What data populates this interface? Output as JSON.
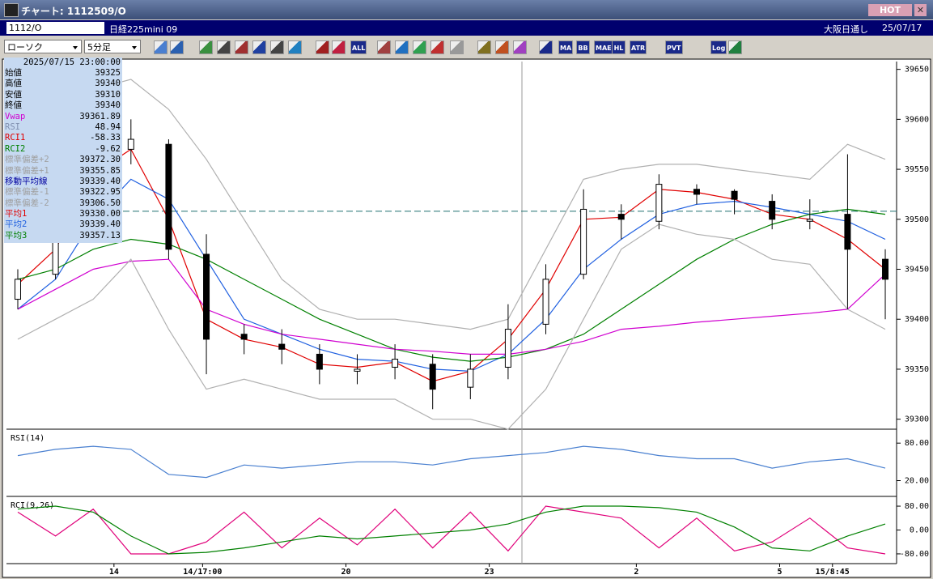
{
  "title_bar": {
    "title": "チャート: 1112509/O",
    "hot": "HOT"
  },
  "toolbar": {
    "symbol": "1112/O",
    "name": "日経225mini 09",
    "exchange": "大阪日通し",
    "date": "25/07/17",
    "chart_type": "ローソク",
    "timeframe": "5分足",
    "buttons": [
      "ALL",
      "MA",
      "BB",
      "MAE",
      "HL",
      "ATR",
      "PVT",
      "Log"
    ]
  },
  "info_panel": {
    "datetime": "2025/07/15 23:00:00",
    "rows": [
      [
        "始値",
        "39325"
      ],
      [
        "高値",
        "39340"
      ],
      [
        "安値",
        "39310"
      ],
      [
        "終値",
        "39340"
      ],
      [
        "Vwap",
        "39361.89"
      ],
      [
        "RSI",
        "48.94"
      ],
      [
        "RCI1",
        "-58.33"
      ],
      [
        "RCI2",
        "-9.62"
      ],
      [
        "標準偏差+2",
        "39372.30"
      ],
      [
        "標準偏差+1",
        "39355.85"
      ],
      [
        "移動平均線",
        "39339.40"
      ],
      [
        "標準偏差-1",
        "39322.95"
      ],
      [
        "標準偏差-2",
        "39306.50"
      ],
      [
        "平均1",
        "39330.00"
      ],
      [
        "平均2",
        "39339.40"
      ],
      [
        "平均3",
        "39357.13"
      ]
    ]
  },
  "chart_data": {
    "type": "candlestick",
    "x": [
      0,
      1,
      2,
      3,
      4,
      5,
      6,
      7,
      8,
      9,
      10,
      11,
      12,
      13,
      14,
      15,
      16,
      17,
      18,
      19,
      20,
      21,
      22,
      23
    ],
    "xlim": [
      -0.3,
      23.3
    ],
    "xticks": [
      {
        "value": 2.55,
        "label": "14"
      },
      {
        "value": 4.9,
        "label": "14/17:00"
      },
      {
        "value": 8.7,
        "label": "20"
      },
      {
        "value": 12.5,
        "label": "23"
      },
      {
        "value": 16.4,
        "label": "2"
      },
      {
        "value": 20.2,
        "label": "5"
      },
      {
        "value": 21.6,
        "label": "15/8:45"
      }
    ],
    "ohlc": {
      "open": [
        39420,
        39445,
        39495,
        39570,
        39575,
        39465,
        39385,
        39375,
        39365,
        39348,
        39352,
        39355,
        39332,
        39352,
        39395,
        39445,
        39505,
        39498,
        39530,
        39528,
        39518,
        39498,
        39505,
        39460
      ],
      "high": [
        39450,
        39500,
        39585,
        39600,
        39580,
        39485,
        39395,
        39390,
        39375,
        39365,
        39375,
        39365,
        39365,
        39415,
        39455,
        39530,
        39515,
        39545,
        39535,
        39530,
        39525,
        39520,
        39565,
        39470
      ],
      "low": [
        39410,
        39440,
        39485,
        39555,
        39460,
        39345,
        39365,
        39355,
        39335,
        39335,
        39340,
        39310,
        39320,
        39340,
        39385,
        39440,
        39480,
        39490,
        39515,
        39505,
        39490,
        39490,
        39410,
        39400
      ],
      "close": [
        39440,
        39490,
        39570,
        39580,
        39470,
        39380,
        39380,
        39370,
        39350,
        39350,
        39360,
        39330,
        39350,
        39390,
        39440,
        39510,
        39500,
        39535,
        39525,
        39520,
        39500,
        39500,
        39470,
        39440
      ]
    },
    "up_color": "#ffffff",
    "down_color": "#000000",
    "series": [
      {
        "name": "平均1",
        "color": "#e00000",
        "values": [
          39435,
          39470,
          39545,
          39570,
          39500,
          39400,
          39380,
          39372,
          39355,
          39352,
          39357,
          39338,
          39348,
          39380,
          39430,
          39500,
          39502,
          39530,
          39527,
          39520,
          39505,
          39500,
          39480,
          39450
        ]
      },
      {
        "name": "平均2",
        "color": "#2060e0",
        "values": [
          39410,
          39440,
          39500,
          39540,
          39520,
          39460,
          39400,
          39385,
          39370,
          39360,
          39358,
          39350,
          39348,
          39365,
          39400,
          39450,
          39480,
          39505,
          39515,
          39518,
          39512,
          39505,
          39498,
          39480
        ]
      },
      {
        "name": "平均3",
        "color": "#008000",
        "values": [
          39440,
          39450,
          39470,
          39480,
          39475,
          39460,
          39440,
          39420,
          39400,
          39385,
          39370,
          39362,
          39358,
          39362,
          39370,
          39385,
          39410,
          39435,
          39460,
          39480,
          39495,
          39505,
          39510,
          39505
        ]
      },
      {
        "name": "Vwap",
        "color": "#d000d0",
        "values": [
          39410,
          39430,
          39450,
          39458,
          39460,
          39410,
          39395,
          39385,
          39380,
          39375,
          39370,
          39368,
          39365,
          39365,
          39370,
          39378,
          39390,
          39393,
          39397,
          39400,
          39403,
          39406,
          39410,
          39445
        ]
      },
      {
        "name": "標準偏差+2",
        "color": "#b0b0b0",
        "values": [
          39480,
          39560,
          39630,
          39640,
          39610,
          39560,
          39500,
          39440,
          39410,
          39400,
          39400,
          39395,
          39390,
          39400,
          39470,
          39540,
          39550,
          39555,
          39555,
          39550,
          39545,
          39540,
          39575,
          39560
        ]
      },
      {
        "name": "標準偏差-2",
        "color": "#b0b0b0",
        "values": [
          39380,
          39400,
          39420,
          39460,
          39390,
          39330,
          39340,
          39330,
          39320,
          39320,
          39320,
          39300,
          39300,
          39290,
          39330,
          39400,
          39470,
          39495,
          39485,
          39480,
          39460,
          39455,
          39410,
          39390
        ]
      }
    ],
    "reference_line": 39508,
    "reference_color": "#207070",
    "ylim": [
      39290,
      39657
    ],
    "yticks": [
      39300,
      39350,
      39400,
      39450,
      39500,
      39550,
      39600,
      39650
    ],
    "rsi": {
      "label": "RSI(14)",
      "color": "#4a80d0",
      "ylim": [
        -4,
        101
      ],
      "yticks": [
        {
          "value": 80,
          "label": "80.00"
        },
        {
          "value": 20,
          "label": "20.00"
        }
      ],
      "values": [
        60,
        70,
        75,
        70,
        30,
        25,
        45,
        40,
        45,
        50,
        50,
        45,
        55,
        60,
        65,
        75,
        70,
        60,
        55,
        55,
        40,
        50,
        55,
        40
      ]
    },
    "rci": {
      "label": "RCI(9,26)",
      "ylim": [
        -110,
        110
      ],
      "yticks": [
        {
          "value": 80,
          "label": "80.00"
        },
        {
          "value": 0,
          "label": "0.00"
        },
        {
          "value": -80,
          "label": "-80.00"
        }
      ],
      "series": [
        {
          "name": "RCI1",
          "color": "#e0007a",
          "values": [
            60,
            -20,
            70,
            -80,
            -80,
            -40,
            60,
            -60,
            40,
            -50,
            70,
            -60,
            60,
            -70,
            80,
            60,
            40,
            -60,
            40,
            -70,
            -40,
            40,
            -60,
            -80
          ]
        },
        {
          "name": "RCI2",
          "color": "#008000",
          "values": [
            70,
            80,
            60,
            -20,
            -80,
            -75,
            -60,
            -40,
            -20,
            -30,
            -20,
            -10,
            0,
            20,
            60,
            80,
            80,
            75,
            60,
            10,
            -60,
            -70,
            -20,
            20
          ]
        }
      ]
    }
  }
}
